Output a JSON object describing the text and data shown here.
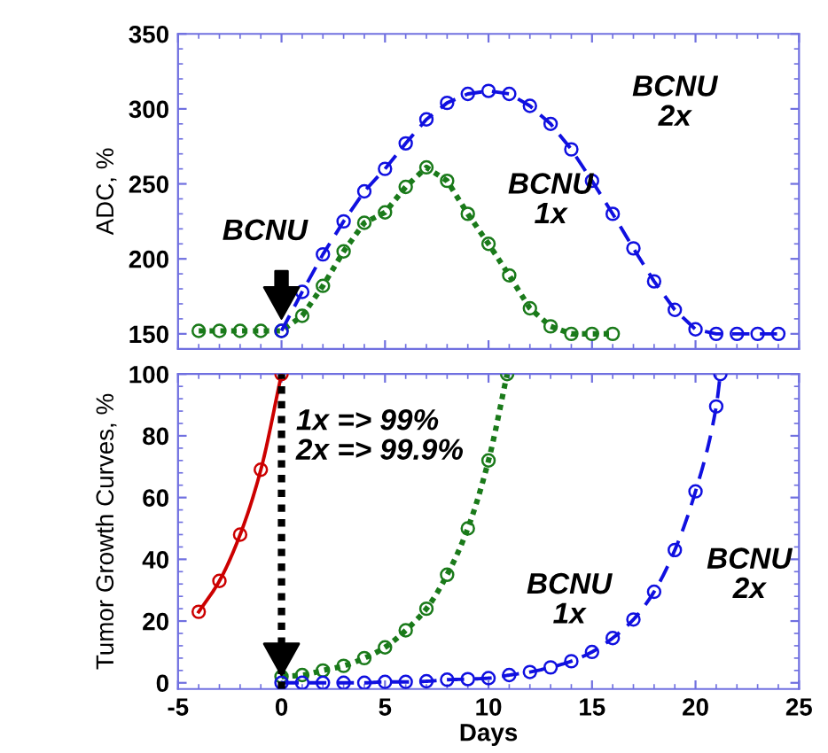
{
  "chart_data": [
    {
      "type": "line",
      "ylabel": "ADC, %",
      "xlim": [
        -5,
        25
      ],
      "xticks": [
        -5,
        0,
        5,
        10,
        15,
        20,
        25
      ],
      "ylim": [
        140,
        350
      ],
      "yticks": [
        150,
        200,
        250,
        300,
        350
      ],
      "tick_labels": "y",
      "grid": false,
      "legend": false,
      "marker": "circle",
      "annotations": [
        "BCNU",
        "BCNU\n1x",
        "BCNU\n2x"
      ],
      "series": [
        {
          "color": "#1a7a1a",
          "line_style": "dotted",
          "x": [
            -4,
            -3,
            -2,
            -1,
            0,
            1,
            2,
            3,
            4,
            5,
            6,
            7,
            8,
            9,
            10,
            11,
            12,
            13,
            14,
            15,
            16
          ],
          "values": [
            152,
            152,
            152,
            152,
            152,
            162,
            182,
            205,
            224,
            231,
            248,
            261,
            252,
            230,
            210,
            189,
            167,
            155,
            150,
            150,
            150
          ]
        },
        {
          "color": "#1010e0",
          "line_style": "dashed",
          "x": [
            0,
            1,
            2,
            3,
            4,
            5,
            6,
            7,
            8,
            9,
            10,
            11,
            12,
            13,
            14,
            15,
            16,
            17,
            18,
            19,
            20,
            21,
            22,
            23,
            24
          ],
          "values": [
            152,
            178,
            203,
            225,
            245,
            260,
            277,
            293,
            304,
            310,
            312,
            310,
            302,
            290,
            273,
            252,
            230,
            207,
            185,
            166,
            153,
            150,
            150,
            150,
            150
          ]
        }
      ]
    },
    {
      "type": "line",
      "xlabel": "Days",
      "ylabel": "Tumor Growth Curves, %",
      "xlim": [
        -5,
        25
      ],
      "xticks": [
        -5,
        0,
        5,
        10,
        15,
        20,
        25
      ],
      "ylim": [
        -2,
        100
      ],
      "yticks": [
        0,
        20,
        40,
        60,
        80,
        100
      ],
      "grid": false,
      "legend": false,
      "marker": "circle",
      "annotations": [
        "1x => 99%\n2x => 99.9%",
        "BCNU\n1x",
        "BCNU\n2x"
      ],
      "ref_lines": [
        {
          "axis": "x",
          "value": 0,
          "color": "#000000",
          "line_style": "dotted"
        }
      ],
      "series": [
        {
          "color": "#cc0000",
          "line_style": "solid",
          "x": [
            -4,
            -3,
            -2,
            -1,
            0
          ],
          "values": [
            23,
            33,
            48,
            69,
            100
          ]
        },
        {
          "color": "#1a7a1a",
          "line_style": "dotted",
          "x": [
            0,
            1,
            2,
            3,
            4,
            5,
            6,
            7,
            8,
            9,
            10,
            10.9
          ],
          "values": [
            2,
            2.5,
            4,
            5.5,
            8,
            11.5,
            17,
            24,
            35,
            50,
            72,
            100
          ]
        },
        {
          "color": "#1010e0",
          "line_style": "dashed",
          "x": [
            0,
            1,
            2,
            3,
            4,
            5,
            6,
            7,
            8,
            9,
            10,
            11,
            12,
            13,
            14,
            15,
            16,
            17,
            18,
            19,
            20,
            21,
            21.2
          ],
          "values": [
            0,
            0,
            0,
            0,
            0,
            0.3,
            0.3,
            0.5,
            1,
            1.2,
            1.5,
            2.5,
            3.5,
            5,
            7,
            10,
            14.5,
            20.5,
            29.5,
            43,
            62,
            89.5,
            100
          ]
        }
      ]
    }
  ]
}
